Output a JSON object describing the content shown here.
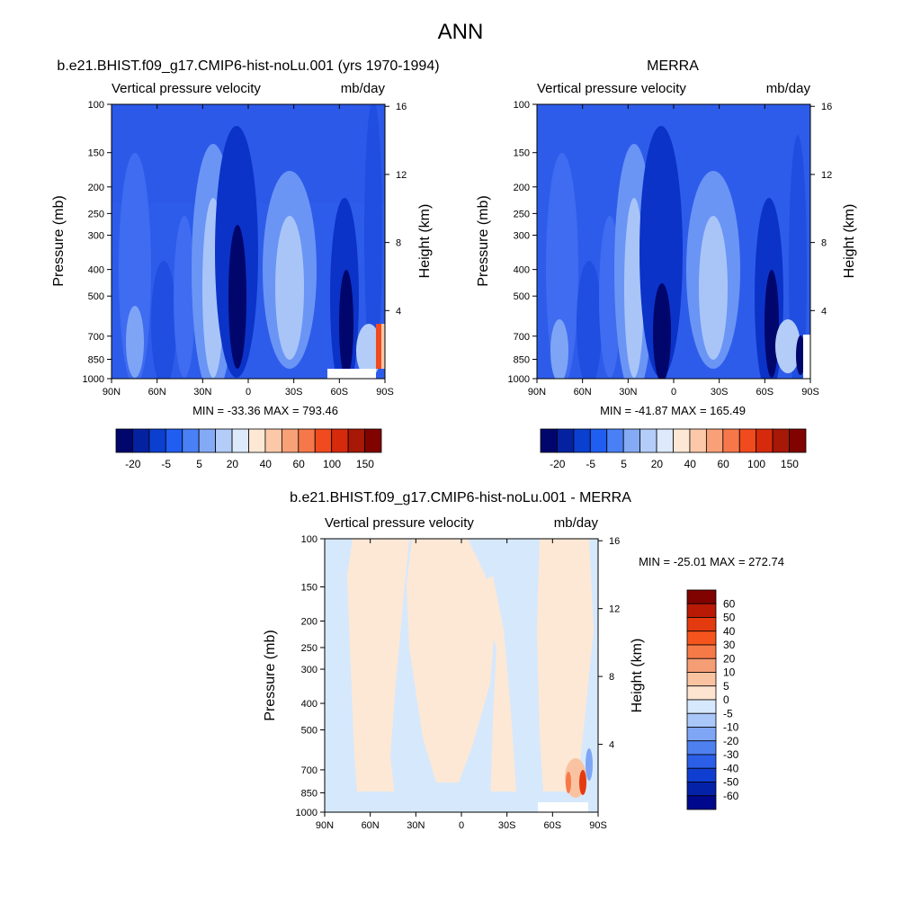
{
  "figure_title": "ANN",
  "chart_data": [
    {
      "type": "contour",
      "title": "b.e21.BHIST.f09_g17.CMIP6-hist-noLu.001 (yrs 1970-1994)",
      "left_label": "Vertical pressure velocity",
      "right_label": "mb/day",
      "ylabel": "Pressure (mb)",
      "y2label": "Height (km)",
      "x_ticks": [
        "90N",
        "60N",
        "30N",
        "0",
        "30S",
        "60S",
        "90S"
      ],
      "y_ticks": [
        100,
        150,
        200,
        250,
        300,
        400,
        500,
        700,
        850,
        1000
      ],
      "y2_ticks": [
        16,
        12,
        8,
        4
      ],
      "stats": "MIN = -33.36  MAX = 793.46",
      "colorbar_labels": [
        "-20",
        "-5",
        "5",
        "20",
        "40",
        "60",
        "100",
        "150"
      ],
      "colorbar_colors": [
        "#00066b",
        "#0422a0",
        "#0b3fd0",
        "#1f5ef0",
        "#4a80f5",
        "#84aaf5",
        "#b4cdf8",
        "#dceafc",
        "#fde8d6",
        "#fbc9a8",
        "#f8a078",
        "#f6784a",
        "#f04a1f",
        "#d62a0c",
        "#a81806",
        "#800300"
      ]
    },
    {
      "type": "contour",
      "title": "MERRA",
      "left_label": "Vertical pressure velocity",
      "right_label": "mb/day",
      "ylabel": "Pressure (mb)",
      "y2label": "Height (km)",
      "x_ticks": [
        "90N",
        "60N",
        "30N",
        "0",
        "30S",
        "60S",
        "90S"
      ],
      "y_ticks": [
        100,
        150,
        200,
        250,
        300,
        400,
        500,
        700,
        850,
        1000
      ],
      "y2_ticks": [
        16,
        12,
        8,
        4
      ],
      "stats": "MIN = -41.87  MAX = 165.49",
      "colorbar_labels": [
        "-20",
        "-5",
        "5",
        "20",
        "40",
        "60",
        "100",
        "150"
      ],
      "colorbar_colors": [
        "#00066b",
        "#0422a0",
        "#0b3fd0",
        "#1f5ef0",
        "#4a80f5",
        "#84aaf5",
        "#b4cdf8",
        "#dceafc",
        "#fde8d6",
        "#fbc9a8",
        "#f8a078",
        "#f6784a",
        "#f04a1f",
        "#d62a0c",
        "#a81806",
        "#800300"
      ]
    },
    {
      "type": "contour",
      "title": "b.e21.BHIST.f09_g17.CMIP6-hist-noLu.001 - MERRA",
      "left_label": "Vertical pressure velocity",
      "right_label": "mb/day",
      "ylabel": "Pressure (mb)",
      "y2label": "Height (km)",
      "x_ticks": [
        "90N",
        "60N",
        "30N",
        "0",
        "30S",
        "60S",
        "90S"
      ],
      "y_ticks": [
        100,
        150,
        200,
        250,
        300,
        400,
        500,
        700,
        850,
        1000
      ],
      "y2_ticks": [
        16,
        12,
        8,
        4
      ],
      "stats": "MIN = -25.01  MAX = 272.74",
      "colorbar_labels": [
        "60",
        "50",
        "40",
        "30",
        "20",
        "10",
        "5",
        "0",
        "-5",
        "-10",
        "-20",
        "-30",
        "-40",
        "-50",
        "-60"
      ],
      "colorbar_colors": [
        "#800300",
        "#b81a06",
        "#e43a10",
        "#f5541c",
        "#f57a48",
        "#f59e76",
        "#f9c3a2",
        "#fde4d0",
        "#d6e8fc",
        "#a9c7f8",
        "#7fa6f4",
        "#4f80f0",
        "#2b5fe8",
        "#0f3ed0",
        "#0422a8",
        "#00088c"
      ]
    }
  ]
}
